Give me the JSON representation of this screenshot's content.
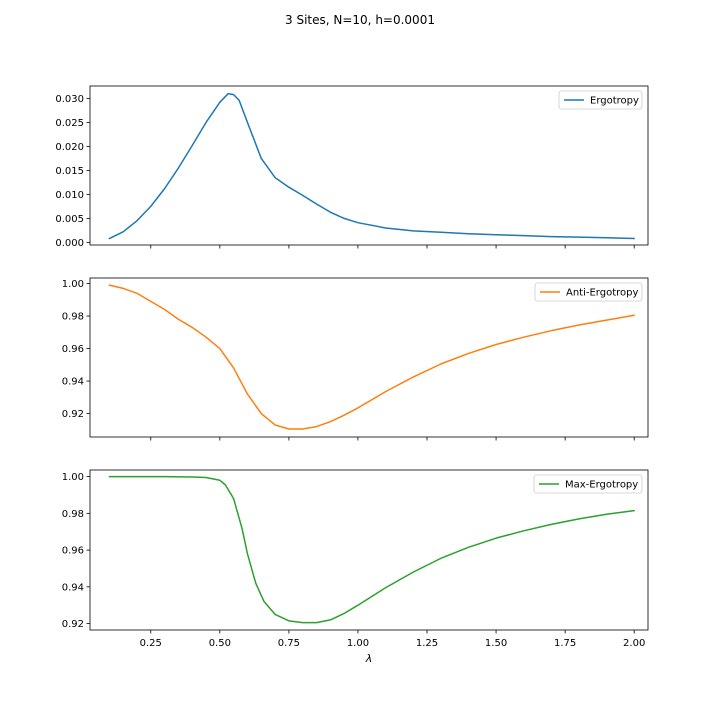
{
  "figure": {
    "suptitle": "3 Sites, N=10, h=0.0001",
    "xlabel": "λ"
  },
  "chart_data": [
    {
      "type": "line",
      "title": "",
      "xlabel": "",
      "ylabel": "",
      "xlim": [
        0.03,
        2.05
      ],
      "ylim": [
        -0.00055,
        0.0326
      ],
      "x_ticks": [
        0.25,
        0.5,
        0.75,
        1.0,
        1.25,
        1.5,
        1.75,
        2.0
      ],
      "x_tick_labels_shown": false,
      "y_ticks": [
        0.0,
        0.005,
        0.01,
        0.015,
        0.02,
        0.025,
        0.03
      ],
      "y_tick_labels": [
        "0.000",
        "0.005",
        "0.010",
        "0.015",
        "0.020",
        "0.025",
        "0.030"
      ],
      "legend_position": "top-right",
      "grid": false,
      "series": [
        {
          "name": "Ergotropy",
          "color": "#1f77b4",
          "x": [
            0.1,
            0.15,
            0.2,
            0.25,
            0.3,
            0.35,
            0.4,
            0.45,
            0.5,
            0.53,
            0.55,
            0.57,
            0.6,
            0.65,
            0.7,
            0.75,
            0.8,
            0.85,
            0.9,
            0.95,
            1.0,
            1.1,
            1.2,
            1.3,
            1.4,
            1.5,
            1.6,
            1.7,
            1.8,
            1.9,
            2.0
          ],
          "y": [
            0.0008,
            0.0022,
            0.0045,
            0.0075,
            0.0112,
            0.0155,
            0.0202,
            0.025,
            0.0292,
            0.031,
            0.0308,
            0.0296,
            0.025,
            0.0175,
            0.0135,
            0.0115,
            0.0098,
            0.008,
            0.0063,
            0.005,
            0.0041,
            0.003,
            0.0024,
            0.0021,
            0.0018,
            0.0016,
            0.0014,
            0.0012,
            0.0011,
            0.00095,
            0.0008
          ]
        }
      ]
    },
    {
      "type": "line",
      "title": "",
      "xlabel": "",
      "ylabel": "",
      "xlim": [
        0.03,
        2.05
      ],
      "ylim": [
        0.9056,
        1.0034
      ],
      "x_ticks": [
        0.25,
        0.5,
        0.75,
        1.0,
        1.25,
        1.5,
        1.75,
        2.0
      ],
      "x_tick_labels_shown": false,
      "y_ticks": [
        0.92,
        0.94,
        0.96,
        0.98,
        1.0
      ],
      "y_tick_labels": [
        "0.92",
        "0.94",
        "0.96",
        "0.98",
        "1.00"
      ],
      "legend_position": "top-right",
      "grid": false,
      "series": [
        {
          "name": "Anti-Ergotropy",
          "color": "#ff7f0e",
          "x": [
            0.1,
            0.15,
            0.2,
            0.25,
            0.3,
            0.35,
            0.4,
            0.45,
            0.5,
            0.55,
            0.6,
            0.65,
            0.7,
            0.75,
            0.8,
            0.85,
            0.9,
            0.95,
            1.0,
            1.1,
            1.2,
            1.3,
            1.4,
            1.5,
            1.6,
            1.7,
            1.8,
            1.9,
            2.0
          ],
          "y": [
            0.999,
            0.997,
            0.994,
            0.989,
            0.984,
            0.978,
            0.973,
            0.967,
            0.96,
            0.948,
            0.932,
            0.92,
            0.913,
            0.9105,
            0.9105,
            0.912,
            0.915,
            0.919,
            0.9235,
            0.9335,
            0.9425,
            0.9505,
            0.957,
            0.9625,
            0.967,
            0.971,
            0.9745,
            0.9775,
            0.9805
          ]
        }
      ]
    },
    {
      "type": "line",
      "title": "",
      "xlabel": "λ",
      "ylabel": "",
      "xlim": [
        0.03,
        2.05
      ],
      "ylim": [
        0.9165,
        1.0036
      ],
      "x_ticks": [
        0.25,
        0.5,
        0.75,
        1.0,
        1.25,
        1.5,
        1.75,
        2.0
      ],
      "x_tick_labels": [
        "0.25",
        "0.50",
        "0.75",
        "1.00",
        "1.25",
        "1.50",
        "1.75",
        "2.00"
      ],
      "x_tick_labels_shown": true,
      "y_ticks": [
        0.92,
        0.94,
        0.96,
        0.98,
        1.0
      ],
      "y_tick_labels": [
        "0.92",
        "0.94",
        "0.96",
        "0.98",
        "1.00"
      ],
      "legend_position": "top-right",
      "grid": false,
      "series": [
        {
          "name": "Max-Ergotropy",
          "color": "#2ca02c",
          "x": [
            0.1,
            0.2,
            0.3,
            0.4,
            0.45,
            0.5,
            0.52,
            0.55,
            0.58,
            0.6,
            0.63,
            0.66,
            0.7,
            0.75,
            0.8,
            0.85,
            0.9,
            0.95,
            1.0,
            1.1,
            1.2,
            1.3,
            1.4,
            1.5,
            1.6,
            1.7,
            1.8,
            1.9,
            2.0
          ],
          "y": [
            1.0,
            1.0,
            1.0,
            0.9998,
            0.9995,
            0.998,
            0.9955,
            0.988,
            0.972,
            0.958,
            0.942,
            0.932,
            0.925,
            0.9215,
            0.9205,
            0.9205,
            0.922,
            0.9255,
            0.93,
            0.9395,
            0.948,
            0.9555,
            0.9615,
            0.9665,
            0.9705,
            0.974,
            0.977,
            0.9795,
            0.9815
          ]
        }
      ]
    }
  ]
}
